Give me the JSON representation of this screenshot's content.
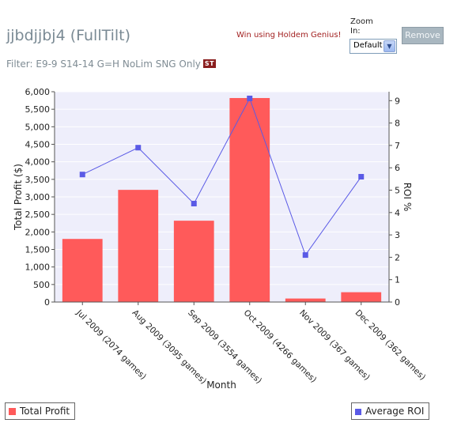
{
  "header": {
    "player_name": "jjbdjjbj4 (FullTilt)",
    "promo_link": "Win using Holdem Genius!",
    "zoom_label": "Zoom In:",
    "zoom_selected": "Default",
    "remove_button": "Remove",
    "filter_text": "Filter: E9-9 S14-14 G=H NoLim SNG Only",
    "filter_badge": "ST"
  },
  "colors": {
    "bar": "#ff5a5a",
    "line": "#5a5ae6",
    "plot_bg": "#eeeefb",
    "grid": "#ffffff"
  },
  "chart_data": {
    "type": "bar",
    "title": "",
    "xlabel": "Month",
    "ylabel": "Total Profit ($)",
    "y2label": "ROI %",
    "categories": [
      "Jul 2009 (2074 games)",
      "Aug 2009 (3095 games)",
      "Sep 2009 (3554 games)",
      "Oct 2009 (4266 games)",
      "Nov 2009 (367 games)",
      "Dec 2009 (362 games)"
    ],
    "ylim": [
      0,
      6000
    ],
    "yticks": [
      "0",
      "500",
      "1,000",
      "1,500",
      "2,000",
      "2,500",
      "3,000",
      "3,500",
      "4,000",
      "4,500",
      "5,000",
      "5,500",
      "6,000"
    ],
    "y2lim": [
      0,
      9.4
    ],
    "y2ticks": [
      "0",
      "1",
      "2",
      "3",
      "4",
      "5",
      "6",
      "7",
      "8",
      "9"
    ],
    "series": [
      {
        "name": "Total Profit",
        "type": "bar",
        "axis": "left",
        "values": [
          1800,
          3200,
          2320,
          5820,
          100,
          280
        ]
      },
      {
        "name": "Average ROI",
        "type": "line",
        "axis": "right",
        "values": [
          5.7,
          6.9,
          4.4,
          9.1,
          2.1,
          5.6
        ]
      }
    ],
    "legend_position": "bottom",
    "grid": true
  }
}
